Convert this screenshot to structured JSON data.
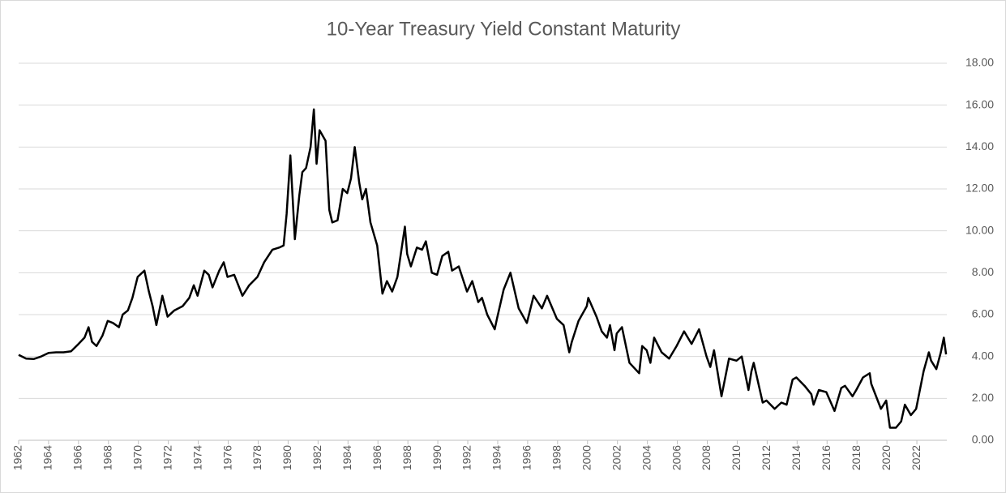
{
  "chart_data": {
    "type": "line",
    "title": "10-Year Treasury Yield Constant Maturity",
    "x": [
      1962.0,
      1962.5,
      1963.0,
      1963.5,
      1964.0,
      1964.5,
      1965.0,
      1965.5,
      1966.0,
      1966.4,
      1966.67,
      1966.9,
      1967.2,
      1967.6,
      1967.95,
      1968.3,
      1968.7,
      1968.95,
      1969.3,
      1969.6,
      1969.95,
      1970.4,
      1970.7,
      1970.95,
      1971.2,
      1971.6,
      1971.95,
      1972.4,
      1972.95,
      1973.4,
      1973.7,
      1973.95,
      1974.4,
      1974.7,
      1974.95,
      1975.4,
      1975.7,
      1975.95,
      1976.4,
      1976.95,
      1977.4,
      1977.95,
      1978.4,
      1978.95,
      1979.4,
      1979.7,
      1979.9,
      1980.15,
      1980.45,
      1980.75,
      1980.95,
      1981.2,
      1981.5,
      1981.72,
      1981.9,
      1982.1,
      1982.5,
      1982.75,
      1982.95,
      1983.3,
      1983.65,
      1983.95,
      1984.2,
      1984.45,
      1984.75,
      1984.95,
      1985.2,
      1985.5,
      1985.95,
      1986.3,
      1986.6,
      1986.95,
      1987.3,
      1987.8,
      1987.95,
      1988.2,
      1988.6,
      1988.95,
      1989.2,
      1989.6,
      1989.95,
      1990.3,
      1990.7,
      1990.95,
      1991.4,
      1991.95,
      1992.3,
      1992.7,
      1992.95,
      1993.3,
      1993.8,
      1993.95,
      1994.4,
      1994.85,
      1995.4,
      1995.95,
      1996.4,
      1996.95,
      1997.3,
      1997.95,
      1998.4,
      1998.78,
      1998.95,
      1999.4,
      1999.95,
      2000.05,
      2000.6,
      2000.95,
      2001.3,
      2001.5,
      2001.8,
      2001.95,
      2002.3,
      2002.8,
      2003.45,
      2003.65,
      2003.95,
      2004.2,
      2004.45,
      2004.95,
      2005.45,
      2005.95,
      2006.45,
      2006.95,
      2007.45,
      2007.95,
      2008.2,
      2008.45,
      2008.95,
      2009.45,
      2009.95,
      2010.3,
      2010.75,
      2010.95,
      2011.1,
      2011.7,
      2011.95,
      2012.5,
      2012.95,
      2013.3,
      2013.7,
      2013.95,
      2014.5,
      2014.95,
      2015.1,
      2015.45,
      2015.95,
      2016.5,
      2016.95,
      2017.2,
      2017.7,
      2017.95,
      2018.4,
      2018.85,
      2018.95,
      2019.6,
      2019.95,
      2020.2,
      2020.6,
      2020.95,
      2021.2,
      2021.6,
      2021.95,
      2022.45,
      2022.8,
      2022.95,
      2023.3,
      2023.6,
      2023.8,
      2023.95
    ],
    "series": [
      {
        "name": "10-Year Treasury Yield",
        "color": "#000000",
        "values": [
          4.08,
          3.9,
          3.88,
          4.0,
          4.17,
          4.2,
          4.2,
          4.25,
          4.6,
          4.9,
          5.4,
          4.7,
          4.5,
          5.0,
          5.7,
          5.6,
          5.4,
          6.0,
          6.2,
          6.8,
          7.8,
          8.1,
          7.1,
          6.4,
          5.5,
          6.9,
          5.9,
          6.2,
          6.4,
          6.8,
          7.4,
          6.9,
          8.1,
          7.9,
          7.3,
          8.1,
          8.5,
          7.8,
          7.9,
          6.9,
          7.4,
          7.8,
          8.5,
          9.1,
          9.2,
          9.3,
          10.8,
          13.6,
          9.6,
          11.7,
          12.8,
          13.0,
          14.0,
          15.8,
          13.2,
          14.8,
          14.3,
          11.0,
          10.4,
          10.5,
          12.0,
          11.8,
          12.5,
          14.0,
          12.3,
          11.5,
          12.0,
          10.4,
          9.3,
          7.0,
          7.6,
          7.1,
          7.8,
          10.2,
          8.9,
          8.3,
          9.2,
          9.1,
          9.5,
          8.0,
          7.9,
          8.8,
          9.0,
          8.1,
          8.3,
          7.1,
          7.6,
          6.6,
          6.8,
          6.0,
          5.3,
          5.8,
          7.2,
          8.0,
          6.3,
          5.6,
          6.9,
          6.3,
          6.9,
          5.8,
          5.5,
          4.2,
          4.7,
          5.7,
          6.4,
          6.8,
          5.9,
          5.2,
          4.9,
          5.5,
          4.3,
          5.1,
          5.4,
          3.7,
          3.2,
          4.5,
          4.3,
          3.7,
          4.9,
          4.2,
          3.9,
          4.5,
          5.2,
          4.6,
          5.3,
          4.0,
          3.5,
          4.3,
          2.1,
          3.9,
          3.8,
          4.0,
          2.4,
          3.3,
          3.7,
          1.8,
          1.9,
          1.5,
          1.8,
          1.7,
          2.9,
          3.0,
          2.6,
          2.2,
          1.7,
          2.4,
          2.3,
          1.4,
          2.5,
          2.6,
          2.1,
          2.4,
          3.0,
          3.2,
          2.7,
          1.5,
          1.9,
          0.6,
          0.6,
          0.9,
          1.7,
          1.2,
          1.5,
          3.3,
          4.2,
          3.8,
          3.4,
          4.2,
          4.9,
          4.1
        ]
      }
    ],
    "xlim": [
      1962,
      2024
    ],
    "xticks": [
      1962,
      1964,
      1966,
      1968,
      1970,
      1972,
      1974,
      1976,
      1978,
      1980,
      1982,
      1984,
      1986,
      1988,
      1990,
      1992,
      1994,
      1996,
      1998,
      2000,
      2002,
      2004,
      2006,
      2008,
      2010,
      2012,
      2014,
      2016,
      2018,
      2020,
      2022
    ],
    "ylim": [
      0,
      18
    ],
    "yticks": [
      {
        "value": 0,
        "label": "0.00"
      },
      {
        "value": 2,
        "label": "2.00"
      },
      {
        "value": 4,
        "label": "4.00"
      },
      {
        "value": 6,
        "label": "6.00"
      },
      {
        "value": 8,
        "label": "8.00"
      },
      {
        "value": 10,
        "label": "10.00"
      },
      {
        "value": 12,
        "label": "12.00"
      },
      {
        "value": 14,
        "label": "14.00"
      },
      {
        "value": 16,
        "label": "16.00"
      },
      {
        "value": 18,
        "label": "18.00"
      }
    ],
    "grid": true
  }
}
